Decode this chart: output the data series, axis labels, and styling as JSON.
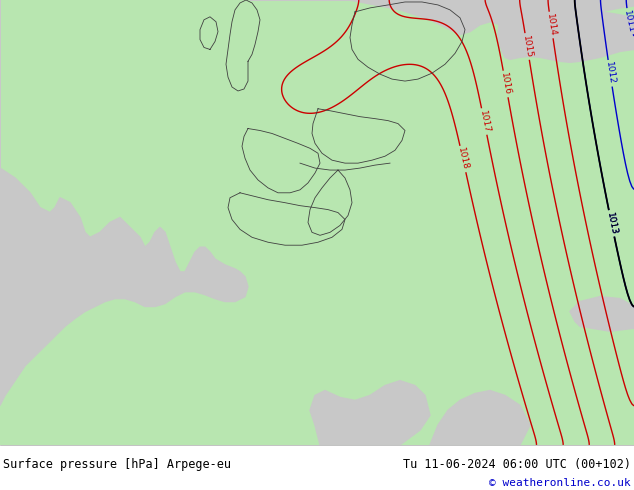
{
  "title_left": "Surface pressure [hPa] Arpege-eu",
  "title_right": "Tu 11-06-2024 06:00 UTC (00+102)",
  "copyright": "© weatheronline.co.uk",
  "bg_color": "#b8e6b0",
  "sea_color": "#c8c8c8",
  "isobar_blue": "#0000cc",
  "isobar_red": "#cc0000",
  "isobar_black": "#000000",
  "border_color": "#404040",
  "copyright_color": "#0000cc",
  "footer_line_color": "#000000"
}
